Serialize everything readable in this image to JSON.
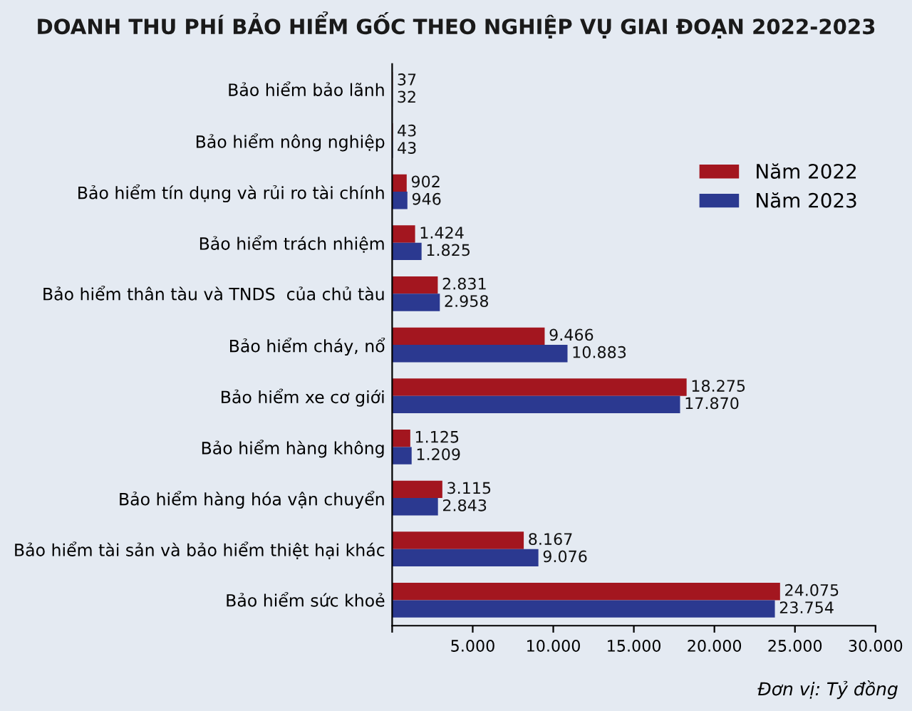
{
  "chart_data": {
    "type": "bar",
    "orientation": "horizontal",
    "title": "DOANH THU PHÍ BẢO HIỂM GỐC THEO NGHIỆP VỤ GIAI ĐOẠN 2022-2023",
    "categories": [
      "Bảo hiểm bảo lãnh",
      "Bảo hiểm nông nghiệp",
      "Bảo hiểm tín dụng và rủi ro tài chính",
      "Bảo hiểm trách nhiệm",
      "Bảo hiểm thân tàu và TNDS  của chủ tàu",
      "Bảo hiểm cháy, nổ",
      "Bảo hiểm xe cơ giới",
      "Bảo hiểm hàng không",
      "Bảo hiểm hàng hóa vận chuyển",
      "Bảo hiểm tài sản và bảo hiểm thiệt hại khác",
      "Bảo hiểm sức khoẻ"
    ],
    "series": [
      {
        "name": "Năm 2022",
        "color": "#a3161f",
        "values": [
          37,
          43,
          902,
          1424,
          2831,
          9466,
          18275,
          1125,
          3115,
          8167,
          24075
        ],
        "value_labels": [
          "37",
          "43",
          "902",
          "1.424",
          "2.831",
          "9.466",
          "18.275",
          "1.125",
          "3.115",
          "8.167",
          "24.075"
        ]
      },
      {
        "name": "Năm 2023",
        "color": "#2b3990",
        "values": [
          32,
          43,
          946,
          1825,
          2958,
          10883,
          17870,
          1209,
          2843,
          9076,
          23754
        ],
        "value_labels": [
          "32",
          "43",
          "946",
          "1.825",
          "2.958",
          "10.883",
          "17.870",
          "1.209",
          "2.843",
          "9.076",
          "23.754"
        ]
      }
    ],
    "xlim": [
      0,
      30000
    ],
    "xticks": [
      {
        "value": 0,
        "label": null
      },
      {
        "value": 5000,
        "label": "5.000"
      },
      {
        "value": 10000,
        "label": "10.000"
      },
      {
        "value": 15000,
        "label": "15.000"
      },
      {
        "value": 20000,
        "label": "20.000"
      },
      {
        "value": 25000,
        "label": "25.000"
      },
      {
        "value": 30000,
        "label": "30.000"
      }
    ],
    "grid": false,
    "legend": "right",
    "annotations": [
      "Đơn vị: Tỷ đồng"
    ]
  }
}
